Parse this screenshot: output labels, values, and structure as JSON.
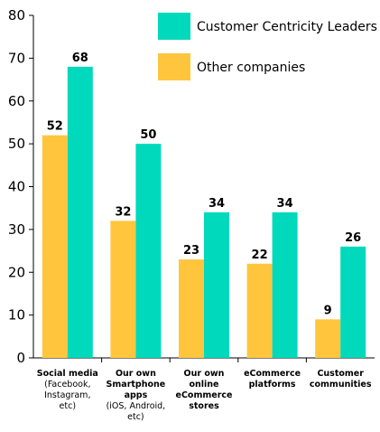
{
  "chart_data": {
    "type": "bar",
    "title": "",
    "xlabel": "",
    "ylabel": "",
    "ylim": [
      0,
      80
    ],
    "yticks": [
      0,
      10,
      20,
      30,
      40,
      50,
      60,
      70,
      80
    ],
    "grid": false,
    "legend_position": "top-right",
    "categories": [
      {
        "lines": [
          {
            "text": "Social media",
            "bold": true
          },
          {
            "text": "(Facebook,",
            "bold": false
          },
          {
            "text": "Instagram,",
            "bold": false
          },
          {
            "text": "etc)",
            "bold": false
          }
        ]
      },
      {
        "lines": [
          {
            "text": "Our own",
            "bold": true
          },
          {
            "text": "Smartphone",
            "bold": true
          },
          {
            "text": "apps",
            "bold": true
          },
          {
            "text": "(iOS, Android,",
            "bold": false
          },
          {
            "text": "etc)",
            "bold": false
          }
        ]
      },
      {
        "lines": [
          {
            "text": "Our own",
            "bold": true
          },
          {
            "text": "online",
            "bold": true
          },
          {
            "text": "eCommerce",
            "bold": true
          },
          {
            "text": "stores",
            "bold": true
          }
        ]
      },
      {
        "lines": [
          {
            "text": "eCommerce",
            "bold": true
          },
          {
            "text": "platforms",
            "bold": true
          }
        ]
      },
      {
        "lines": [
          {
            "text": "Customer",
            "bold": true
          },
          {
            "text": "communities",
            "bold": true
          }
        ]
      }
    ],
    "series": [
      {
        "name": "Other companies",
        "color": "#FFC63D",
        "values": [
          52,
          32,
          23,
          22,
          9
        ]
      },
      {
        "name": "Customer Centricity Leaders",
        "color": "#00D9BC",
        "values": [
          68,
          50,
          34,
          34,
          26
        ]
      }
    ],
    "legend_order": [
      1,
      0
    ]
  }
}
